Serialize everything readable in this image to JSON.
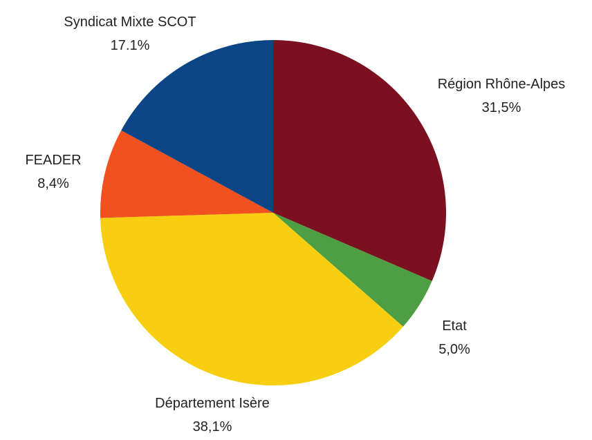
{
  "chart_data": {
    "type": "pie",
    "start_angle_deg": 0,
    "direction": "clockwise",
    "slices": [
      {
        "label": "Région Rhône-Alpes",
        "value_label": "31,5%",
        "value": 31.5,
        "color": "#7b1020"
      },
      {
        "label": "Etat",
        "value_label": "5,0%",
        "value": 5.0,
        "color": "#4e9e44"
      },
      {
        "label": "Département Isère",
        "value_label": "38,1%",
        "value": 38.1,
        "color": "#f7cf10"
      },
      {
        "label": "FEADER",
        "value_label": "8,4%",
        "value": 8.4,
        "color": "#f0511f"
      },
      {
        "label": "Syndicat Mixte SCOT",
        "value_label": "17.1%",
        "value": 17.1,
        "color": "#0c4586"
      }
    ]
  }
}
